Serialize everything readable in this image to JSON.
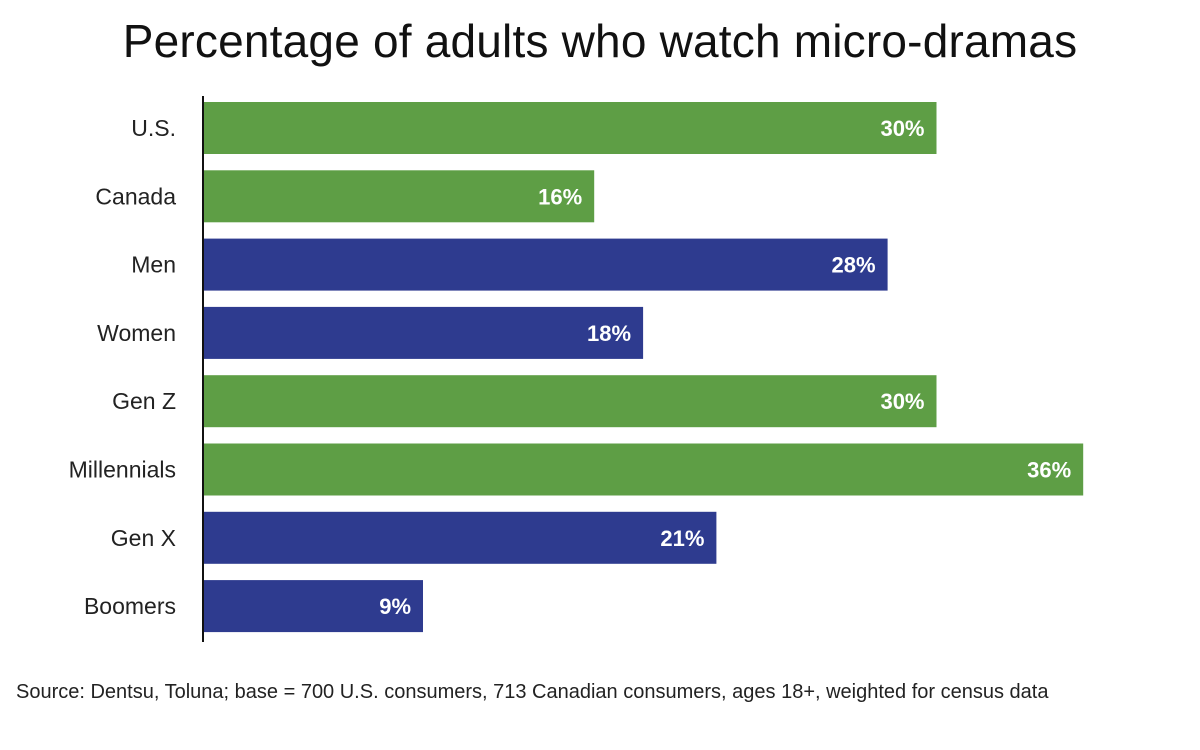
{
  "chart_data": {
    "type": "bar",
    "orientation": "horizontal",
    "title": "Percentage of adults who watch micro-dramas",
    "categories": [
      "U.S.",
      "Canada",
      "Men",
      "Women",
      "Gen Z",
      "Millennials",
      "Gen X",
      "Boomers"
    ],
    "values": [
      30,
      16,
      28,
      18,
      30,
      36,
      21,
      9
    ],
    "value_labels": [
      "30%",
      "16%",
      "28%",
      "18%",
      "30%",
      "36%",
      "21%",
      "9%"
    ],
    "bar_colors": [
      "#5e9e45",
      "#5e9e45",
      "#2e3b8f",
      "#2e3b8f",
      "#5e9e45",
      "#5e9e45",
      "#2e3b8f",
      "#2e3b8f"
    ],
    "xlim": [
      0,
      40
    ],
    "grid": false,
    "legend": "none"
  },
  "source_note": "Source: Dentsu, Toluna; base = 700 U.S. consumers, 713 Canadian consumers, ages 18+, weighted for census data"
}
